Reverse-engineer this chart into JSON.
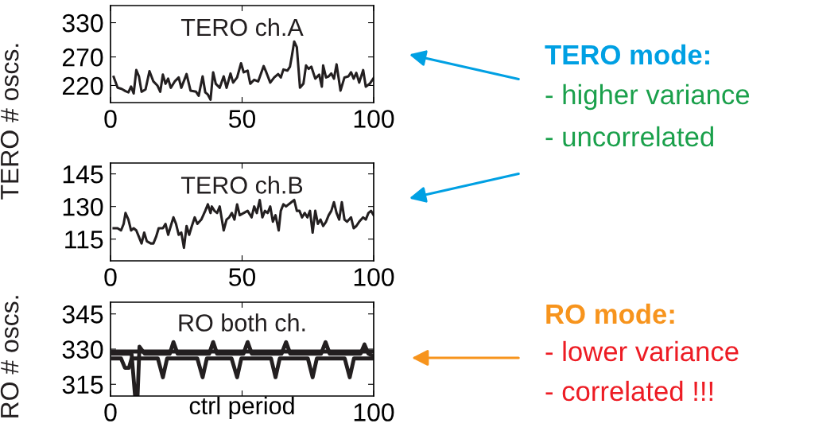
{
  "chart_data": [
    {
      "type": "line",
      "title": "TERO ch.A",
      "ylabel": "TERO # oscs.",
      "xlim": [
        0,
        100
      ],
      "xticks": [
        0,
        50,
        100
      ],
      "ylim": [
        190,
        360
      ],
      "yticks": [
        220,
        270,
        330
      ],
      "grid": false,
      "annotations": [
        "TERO mode:",
        "- higher variance",
        "- uncorrelated"
      ],
      "series": [
        {
          "color": "#231f20",
          "x": [
            1.2,
            2.7,
            4.2,
            5.7,
            6.8,
            7.8,
            8.8,
            9.8,
            10.8,
            11.8,
            13.3,
            14.8,
            16.3,
            17.8,
            18.9,
            19.9,
            20.9,
            21.9,
            22.9,
            24.4,
            25.9,
            26.9,
            28.9,
            30.4,
            32.5,
            33.5,
            35.0,
            36.0,
            37.0,
            38.0,
            39.0,
            40.0,
            41.5,
            43.0,
            44.1,
            45.6,
            46.6,
            48.1,
            49.6,
            50.6,
            52.1,
            53.1,
            54.6,
            56.1,
            58.2,
            59.2,
            60.7,
            62.2,
            63.7,
            64.7,
            65.7,
            67.2,
            68.2,
            69.0,
            69.8,
            70.8,
            72.0,
            73.3,
            74.3,
            75.3,
            76.3,
            77.8,
            79.3,
            80.3,
            80.8,
            81.9,
            82.9,
            83.9,
            84.9,
            85.9,
            87.4,
            88.9,
            90.4,
            91.4,
            92.4,
            93.4,
            94.5,
            96.0,
            97.0,
            98.5,
            100.0
          ],
          "values": [
            235,
            216,
            214,
            210,
            208,
            218,
            206,
            247,
            236,
            209,
            213,
            245,
            227,
            220,
            209,
            239,
            223,
            232,
            216,
            227,
            234,
            216,
            240,
            211,
            209,
            202,
            236,
            208,
            204,
            195,
            243,
            223,
            216,
            236,
            216,
            241,
            225,
            234,
            259,
            243,
            246,
            223,
            230,
            227,
            254,
            243,
            225,
            234,
            240,
            234,
            248,
            246,
            253,
            274,
            297,
            287,
            216,
            223,
            255,
            249,
            253,
            232,
            239,
            218,
            255,
            234,
            236,
            241,
            232,
            257,
            211,
            234,
            236,
            243,
            232,
            242,
            225,
            247,
            218,
            223,
            233
          ]
        }
      ]
    },
    {
      "type": "line",
      "title": "TERO ch.B",
      "xlim": [
        0,
        100
      ],
      "xticks": [
        0,
        50,
        100
      ],
      "ylim": [
        105,
        150
      ],
      "yticks": [
        115,
        130,
        145
      ],
      "grid": false,
      "series": [
        {
          "color": "#231f20",
          "x": [
            1.2,
            2.7,
            4.0,
            5.0,
            5.7,
            6.8,
            7.8,
            8.8,
            9.8,
            10.8,
            11.8,
            12.8,
            13.8,
            15.3,
            16.3,
            17.3,
            18.3,
            19.9,
            20.9,
            21.9,
            22.9,
            23.9,
            24.9,
            25.9,
            26.9,
            27.9,
            28.9,
            29.9,
            30.9,
            32.0,
            33.0,
            34.5,
            36.0,
            37.0,
            38.0,
            38.5,
            39.5,
            40.5,
            41.5,
            43.0,
            44.1,
            45.1,
            46.1,
            47.1,
            48.1,
            49.1,
            50.6,
            52.1,
            53.6,
            54.6,
            55.6,
            56.7,
            57.7,
            58.7,
            59.7,
            60.7,
            61.7,
            62.7,
            63.9,
            64.7,
            65.7,
            66.7,
            67.7,
            69.8,
            70.8,
            71.8,
            72.8,
            73.8,
            74.8,
            75.8,
            76.8,
            77.8,
            78.8,
            79.8,
            80.8,
            81.9,
            82.9,
            83.9,
            84.9,
            85.9,
            86.9,
            87.9,
            88.9,
            89.9,
            91.4,
            92.4,
            93.4,
            94.5,
            96.0,
            97.0,
            98.0,
            99.0,
            100.0
          ],
          "values": [
            120,
            120,
            119,
            122,
            127,
            124,
            119,
            120,
            119,
            116,
            113,
            118,
            114,
            113,
            113,
            116,
            120,
            120,
            122,
            117,
            121,
            125,
            122,
            117,
            118,
            111,
            121,
            117,
            121,
            125,
            122,
            124,
            128,
            131,
            127,
            130,
            128,
            127,
            130,
            119,
            124,
            125,
            127,
            124,
            131,
            126,
            127,
            128,
            125,
            130,
            127,
            133,
            125,
            128,
            127,
            130,
            123,
            126,
            119,
            128,
            131,
            130,
            131,
            133,
            128,
            128,
            125,
            127,
            125,
            128,
            118,
            128,
            122,
            124,
            121,
            123,
            126,
            128,
            132,
            127,
            124,
            132,
            124,
            123,
            125,
            120,
            121,
            123,
            125,
            124,
            127,
            128,
            126
          ]
        }
      ]
    },
    {
      "type": "line",
      "title": "RO both ch.",
      "ylabel": "RO # oscs.",
      "xlabel": "ctrl period",
      "xlim": [
        0,
        100
      ],
      "xticks": [
        0,
        {
          "value": 50,
          "label": null
        },
        100
      ],
      "ylim": [
        310,
        350
      ],
      "yticks": [
        315,
        330,
        345
      ],
      "grid": false,
      "annotations": [
        "RO mode:",
        "- lower variance",
        "- correlated !!!"
      ],
      "series": [
        {
          "color": "#231f20",
          "x": [
            1,
            20,
            40,
            60,
            80,
            100
          ],
          "values": [
            329,
            329,
            329,
            329,
            329,
            329
          ]
        },
        {
          "color": "#231f20",
          "x": [
            1,
            4,
            5.5,
            7,
            8,
            18,
            19.9,
            21.5,
            33,
            35,
            36.6,
            46,
            48.1,
            49.7,
            61,
            62.7,
            64.3,
            75,
            76.8,
            78.4,
            89,
            90.9,
            92.5,
            100
          ],
          "values": [
            326,
            326,
            322,
            322,
            326,
            326,
            318,
            326,
            326,
            318,
            326,
            326,
            318,
            326,
            326,
            318,
            326,
            326,
            318,
            326,
            326,
            318,
            326,
            326
          ]
        },
        {
          "color": "#231f20",
          "x": [
            1,
            8,
            9.3,
            10.3,
            11,
            13,
            22.5,
            23.9,
            25.5,
            37.5,
            39,
            40.5,
            50.5,
            52.1,
            53.7,
            65,
            66.7,
            68.3,
            80,
            81.7,
            83.3,
            95,
            96.5,
            98,
            100
          ],
          "values": [
            328,
            328,
            310.5,
            310.5,
            331,
            328,
            328,
            333,
            328,
            328,
            333,
            328,
            328,
            333,
            328,
            328,
            333,
            328,
            328,
            333,
            328,
            328,
            332,
            328,
            327
          ]
        }
      ]
    }
  ]
}
